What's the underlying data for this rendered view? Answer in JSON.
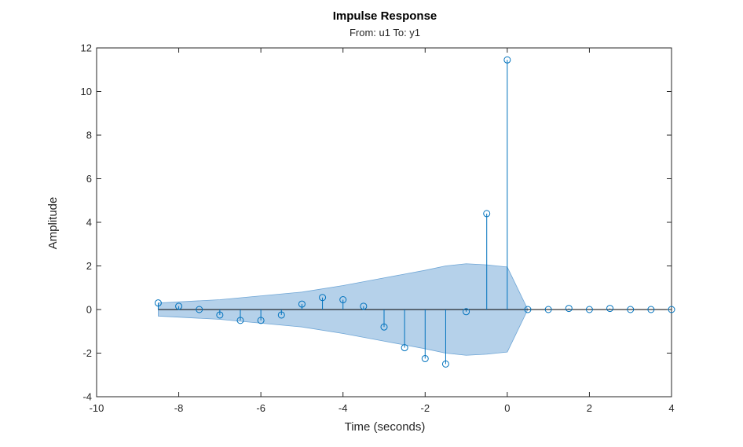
{
  "chart_data": {
    "type": "scatter",
    "subtype": "stem",
    "title": "Impulse Response",
    "subtitle": "From: u1  To: y1",
    "xlabel": "Time (seconds)",
    "ylabel": "Amplitude",
    "xlim": [
      -10,
      4
    ],
    "ylim": [
      -4,
      12
    ],
    "xticks": [
      -10,
      -8,
      -6,
      -4,
      -2,
      0,
      2,
      4
    ],
    "yticks": [
      -4,
      -2,
      0,
      2,
      4,
      6,
      8,
      10,
      12
    ],
    "grid": false,
    "series": [
      {
        "x": [
          -8.5,
          -8,
          -7.5,
          -7,
          -6.5,
          -6,
          -5.5,
          -5,
          -4.5,
          -4,
          -3.5,
          -3,
          -2.5,
          -2,
          -1.5,
          -1,
          -0.5,
          0,
          0.5,
          1,
          1.5,
          2,
          2.5,
          3,
          3.5,
          4
        ],
        "values": [
          0.3,
          0.15,
          0.0,
          -0.25,
          -0.5,
          -0.5,
          -0.25,
          0.25,
          0.55,
          0.45,
          0.15,
          -0.8,
          -1.75,
          -2.25,
          -2.5,
          -0.1,
          4.4,
          11.45,
          0.0,
          0.0,
          0.05,
          0.0,
          0.05,
          0.0,
          0.0,
          0.0
        ]
      }
    ],
    "confidence_band": {
      "x": [
        -8.5,
        -7,
        -5,
        -4,
        -3,
        -2,
        -1.5,
        -1,
        -0.5,
        0,
        0.5
      ],
      "upper": [
        0.3,
        0.45,
        0.8,
        1.1,
        1.45,
        1.8,
        2.0,
        2.1,
        2.05,
        1.95,
        0.0
      ]
    },
    "colors": {
      "stem": "#0072bd",
      "band": "#a8c9e6",
      "band_edge": "#6fa6d6",
      "axes": "#262626",
      "zero_line": "#000000"
    }
  }
}
